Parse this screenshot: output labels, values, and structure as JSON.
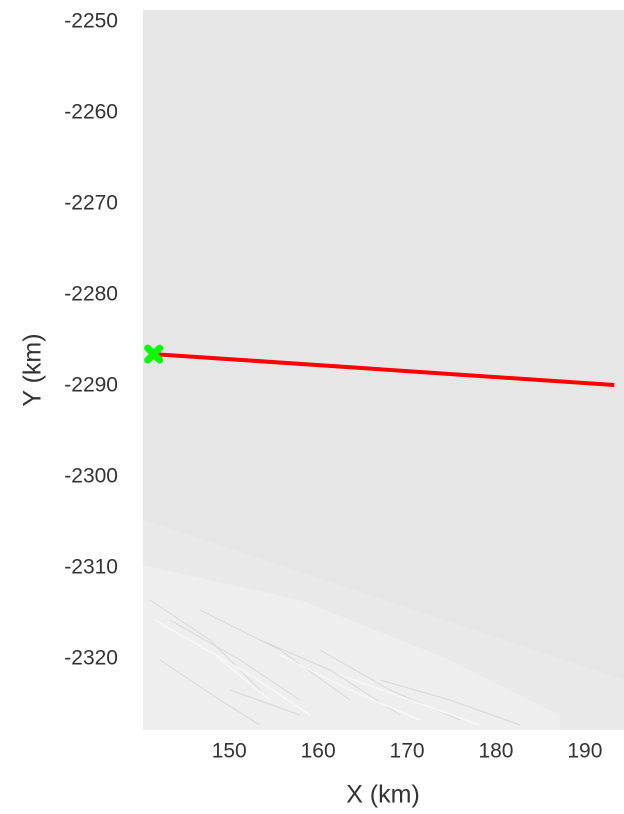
{
  "chart_data": {
    "type": "line",
    "x_label": "X (km)",
    "y_label": "Y (km)",
    "x": [
      141.5,
      193.3
    ],
    "values": [
      -2286.5,
      -2289.9
    ],
    "color": "#ff0000",
    "marker": {
      "x": 141.5,
      "y": -2286.5,
      "color": "#00ff00"
    },
    "xlim": [
      140.3,
      194.4
    ],
    "xticks": [
      150,
      160,
      170,
      180,
      190
    ],
    "ylim": [
      -2327.8,
      -2248.7
    ],
    "yticks": [
      -2250,
      -2260,
      -2270,
      -2280,
      -2290,
      -2300,
      -2310,
      -2320
    ]
  }
}
